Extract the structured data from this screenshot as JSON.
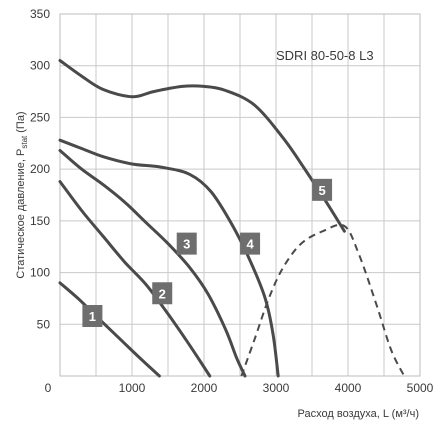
{
  "chart_data": {
    "type": "line",
    "model_label": "SDRI 80-50-8 L3",
    "xlabel": "Расход воздуха, L (м³/ч)",
    "ylabel": "Статическое давление, P",
    "ylabel_sub": "stat",
    "ylabel_unit": "(Па)",
    "xlim": [
      0,
      5000
    ],
    "ylim": [
      0,
      350
    ],
    "x_ticks": [
      0,
      1000,
      2000,
      3000,
      4000,
      5000
    ],
    "y_ticks": [
      50,
      100,
      150,
      200,
      250,
      300,
      350
    ],
    "x_tick_labels": [
      "0",
      "1000",
      "2000",
      "3000",
      "4000",
      "5000"
    ],
    "y_tick_labels": [
      "50",
      "100",
      "150",
      "200",
      "250",
      "300",
      "350"
    ],
    "x_minor_step": 500,
    "y_minor_step": 50,
    "grid": true,
    "series": [
      {
        "name": "1",
        "label_at": [
          450,
          58
        ],
        "points": [
          [
            0,
            90
          ],
          [
            250,
            75
          ],
          [
            500,
            58
          ],
          [
            800,
            38
          ],
          [
            1100,
            18
          ],
          [
            1380,
            0
          ]
        ]
      },
      {
        "name": "2",
        "label_at": [
          1420,
          80
        ],
        "points": [
          [
            0,
            188
          ],
          [
            300,
            160
          ],
          [
            600,
            135
          ],
          [
            900,
            110
          ],
          [
            1200,
            88
          ],
          [
            1500,
            60
          ],
          [
            1750,
            35
          ],
          [
            1950,
            14
          ],
          [
            2080,
            0
          ]
        ]
      },
      {
        "name": "3",
        "label_at": [
          1760,
          128
        ],
        "points": [
          [
            0,
            218
          ],
          [
            300,
            200
          ],
          [
            600,
            185
          ],
          [
            900,
            168
          ],
          [
            1200,
            148
          ],
          [
            1500,
            128
          ],
          [
            1800,
            105
          ],
          [
            2050,
            80
          ],
          [
            2300,
            45
          ],
          [
            2450,
            18
          ],
          [
            2570,
            0
          ]
        ]
      },
      {
        "name": "4",
        "label_at": [
          2640,
          128
        ],
        "points": [
          [
            0,
            228
          ],
          [
            300,
            220
          ],
          [
            600,
            212
          ],
          [
            1000,
            205
          ],
          [
            1400,
            202
          ],
          [
            1800,
            195
          ],
          [
            2100,
            178
          ],
          [
            2400,
            145
          ],
          [
            2650,
            110
          ],
          [
            2850,
            75
          ],
          [
            2960,
            40
          ],
          [
            3030,
            0
          ]
        ]
      },
      {
        "name": "5",
        "label_at": [
          3640,
          180
        ],
        "points": [
          [
            0,
            305
          ],
          [
            300,
            290
          ],
          [
            600,
            277
          ],
          [
            1000,
            270
          ],
          [
            1300,
            275
          ],
          [
            1700,
            280
          ],
          [
            2000,
            280
          ],
          [
            2300,
            276
          ],
          [
            2700,
            262
          ],
          [
            3100,
            230
          ],
          [
            3400,
            200
          ],
          [
            3700,
            168
          ],
          [
            3950,
            140
          ]
        ]
      }
    ],
    "system_curves": [
      {
        "points": [
          [
            2520,
            0
          ],
          [
            2700,
            35
          ],
          [
            2900,
            75
          ],
          [
            3100,
            105
          ],
          [
            3350,
            128
          ],
          [
            3650,
            140
          ],
          [
            3950,
            145
          ],
          [
            4150,
            118
          ],
          [
            4400,
            68
          ],
          [
            4600,
            25
          ],
          [
            4780,
            0
          ]
        ]
      }
    ],
    "colors": {
      "curve": "#4a4a4a",
      "grid": "#c9c9c9",
      "badge_bg": "#6e6e6e",
      "badge_text": "#ffffff",
      "text": "#3a3a3a"
    }
  }
}
